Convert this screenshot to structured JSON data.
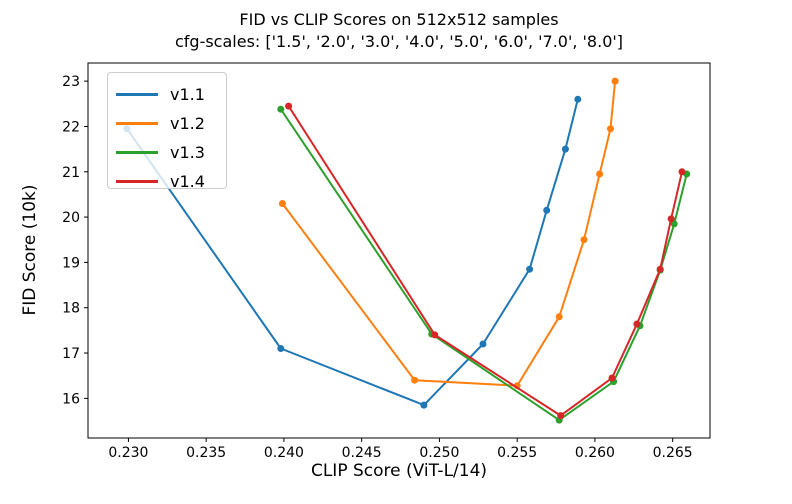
{
  "chart_data": {
    "type": "line",
    "title": "FID vs CLIP Scores on 512x512 samples",
    "subtitle": "cfg-scales: ['1.5', '2.0', '3.0', '4.0', '5.0', '6.0', '7.0', '8.0']",
    "xlabel": "CLIP Score (ViT-L/14)",
    "ylabel": "FID Score (10k)",
    "xlim": [
      0.2274,
      0.2674
    ],
    "ylim": [
      15.125,
      23.4
    ],
    "xticks": [
      0.23,
      0.235,
      0.24,
      0.245,
      0.25,
      0.255,
      0.26,
      0.265
    ],
    "yticks": [
      16,
      17,
      18,
      19,
      20,
      21,
      22,
      23
    ],
    "grid": false,
    "legend_position": "upper-left",
    "cfg_scales": [
      "1.5",
      "2.0",
      "3.0",
      "4.0",
      "5.0",
      "6.0",
      "7.0",
      "8.0"
    ],
    "series": [
      {
        "name": "v1.1",
        "color": "#1f77b4",
        "points": [
          [
            0.2299,
            21.95
          ],
          [
            0.2398,
            17.1
          ],
          [
            0.249,
            15.85
          ],
          [
            0.2528,
            17.2
          ],
          [
            0.2558,
            18.85
          ],
          [
            0.2569,
            20.15
          ],
          [
            0.2581,
            21.5
          ],
          [
            0.2589,
            22.6
          ]
        ]
      },
      {
        "name": "v1.2",
        "color": "#ff7f0e",
        "points": [
          [
            0.2399,
            20.3
          ],
          [
            0.2484,
            16.4
          ],
          [
            0.255,
            16.28
          ],
          [
            0.2577,
            17.8
          ],
          [
            0.2593,
            19.5
          ],
          [
            0.2603,
            20.95
          ],
          [
            0.261,
            21.95
          ],
          [
            0.2613,
            23.0
          ]
        ]
      },
      {
        "name": "v1.3",
        "color": "#2ca02c",
        "points": [
          [
            0.2398,
            22.38
          ],
          [
            0.2495,
            17.42
          ],
          [
            0.2577,
            15.52
          ],
          [
            0.2612,
            16.37
          ],
          [
            0.2629,
            17.6
          ],
          [
            0.2642,
            18.83
          ],
          [
            0.2651,
            19.85
          ],
          [
            0.2659,
            20.95
          ]
        ]
      },
      {
        "name": "v1.4",
        "color": "#d62728",
        "points": [
          [
            0.2403,
            22.45
          ],
          [
            0.2497,
            17.4
          ],
          [
            0.2578,
            15.62
          ],
          [
            0.2611,
            16.45
          ],
          [
            0.2627,
            17.64
          ],
          [
            0.2642,
            18.85
          ],
          [
            0.2649,
            19.96
          ],
          [
            0.2656,
            21.0
          ]
        ]
      }
    ]
  }
}
